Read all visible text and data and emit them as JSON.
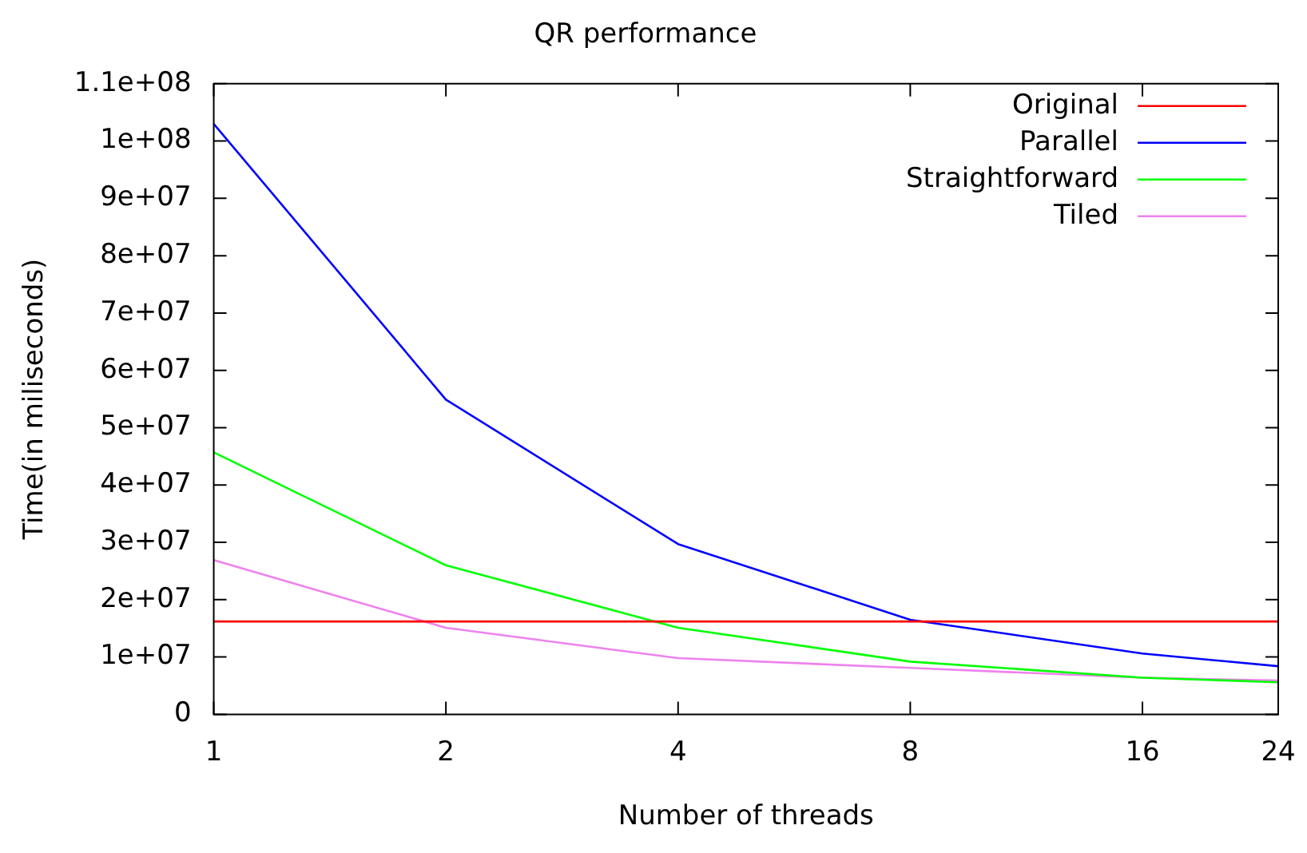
{
  "chart_data": {
    "type": "line",
    "title": "QR performance",
    "xlabel": "Number of threads",
    "ylabel": "Time(in miliseconds)",
    "x": [
      1,
      2,
      4,
      8,
      16,
      24
    ],
    "log": "x",
    "xlim": [
      1,
      24
    ],
    "xticks": [
      1,
      2,
      4,
      8,
      16,
      24
    ],
    "ylim": [
      0,
      110000000
    ],
    "yticks": [
      0,
      {
        "value": 10000000,
        "label": "1e+07"
      },
      {
        "value": 20000000,
        "label": "2e+07"
      },
      {
        "value": 30000000,
        "label": "3e+07"
      },
      {
        "value": 40000000,
        "label": "4e+07"
      },
      {
        "value": 50000000,
        "label": "5e+07"
      },
      {
        "value": 60000000,
        "label": "6e+07"
      },
      {
        "value": 70000000,
        "label": "7e+07"
      },
      {
        "value": 80000000,
        "label": "8e+07"
      },
      {
        "value": 90000000,
        "label": "9e+07"
      },
      {
        "value": 100000000,
        "label": "1e+08"
      },
      {
        "value": 110000000,
        "label": "1.1e+08"
      }
    ],
    "grid": false,
    "legend": "top right",
    "marker": "none",
    "line_style": "solid",
    "series": [
      {
        "name": "Original",
        "color": "#ff0000",
        "values": [
          16200000,
          16200000,
          16200000,
          16200000,
          16200000,
          16200000
        ]
      },
      {
        "name": "Parallel",
        "color": "#0000ff",
        "values": [
          103000000,
          54900000,
          29700000,
          16500000,
          10600000,
          8400000
        ]
      },
      {
        "name": "Straightforward",
        "color": "#00ff00",
        "values": [
          45700000,
          26000000,
          15100000,
          9200000,
          6400000,
          5600000
        ]
      },
      {
        "name": "Tiled",
        "color": "#ee82ee",
        "values": [
          26900000,
          15100000,
          9800000,
          8100000,
          6400000,
          5900000
        ]
      }
    ]
  }
}
